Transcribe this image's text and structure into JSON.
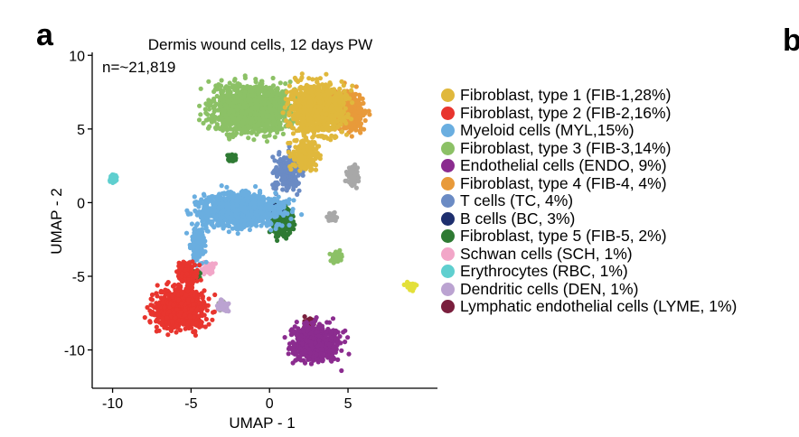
{
  "panels": {
    "a": "a",
    "b": "b"
  },
  "chart_data": {
    "type": "scatter",
    "title": "Dermis wound cells, 12 days PW",
    "annotation": "n=~21,819",
    "xlabel": "UMAP - 1",
    "ylabel": "UMAP - 2",
    "xlim": [
      -11.3,
      10.7
    ],
    "ylim": [
      -12.6,
      10.2
    ],
    "xticks": [
      -10,
      -5,
      0,
      5
    ],
    "xtick_labels": [
      "-10",
      "-5",
      "0",
      "5"
    ],
    "yticks": [
      10,
      5,
      0,
      -5,
      -10
    ],
    "ytick_labels": [
      "10",
      "5",
      "0",
      "-5",
      "-10"
    ],
    "grid": false,
    "legend_position": "right",
    "series": [
      {
        "name": "Fibroblast, type 1 (FIB-1,28%)",
        "color": "#E0B83C",
        "clusters": [
          {
            "center": [
              3.1,
              6.4
            ],
            "spread": [
              1.9,
              1.9
            ],
            "density": 0.95
          },
          {
            "center": [
              2.3,
              3.2
            ],
            "spread": [
              1.0,
              1.1
            ],
            "density": 0.6
          }
        ]
      },
      {
        "name": "Fibroblast, type 2 (FIB-2,16%)",
        "color": "#E8352E",
        "clusters": [
          {
            "center": [
              -5.7,
              -7.2
            ],
            "spread": [
              1.8,
              1.5
            ],
            "density": 1.0
          },
          {
            "center": [
              -5.2,
              -4.8
            ],
            "spread": [
              0.7,
              0.8
            ],
            "density": 0.8
          }
        ]
      },
      {
        "name": "Myeloid cells (MYL,15%)",
        "color": "#6AAEE0",
        "clusters": [
          {
            "center": [
              -1.8,
              -0.5
            ],
            "spread": [
              3.0,
              1.3
            ],
            "density": 0.95
          },
          {
            "center": [
              -4.6,
              -2.9
            ],
            "spread": [
              0.5,
              1.3
            ],
            "density": 0.7
          }
        ]
      },
      {
        "name": "Fibroblast, type 3 (FIB-3,14%)",
        "color": "#8CC166",
        "clusters": [
          {
            "center": [
              -1.2,
              6.4
            ],
            "spread": [
              2.7,
              1.8
            ],
            "density": 0.95
          },
          {
            "center": [
              4.3,
              -3.7
            ],
            "spread": [
              0.4,
              0.4
            ],
            "density": 0.8
          }
        ]
      },
      {
        "name": "Endothelial cells (ENDO, 9%)",
        "color": "#8B2C8F",
        "clusters": [
          {
            "center": [
              2.9,
              -9.5
            ],
            "spread": [
              1.6,
              1.4
            ],
            "density": 1.0
          }
        ]
      },
      {
        "name": "Fibroblast, type 4 (FIB-4, 4%)",
        "color": "#E89A3A",
        "clusters": [
          {
            "center": [
              5.1,
              6.2
            ],
            "spread": [
              1.0,
              1.5
            ],
            "density": 0.95
          }
        ]
      },
      {
        "name": "T cells (TC, 4%)",
        "color": "#6B8BC4",
        "clusters": [
          {
            "center": [
              1.2,
              2.1
            ],
            "spread": [
              1.0,
              1.3
            ],
            "density": 0.5
          }
        ]
      },
      {
        "name": "B cells (BC, 3%)",
        "color": "#1E2F6E",
        "clusters": [
          {
            "center": [
              0.3,
              -0.4
            ],
            "spread": [
              0.4,
              0.5
            ],
            "density": 0.3
          }
        ]
      },
      {
        "name": "Fibroblast, type 5 (FIB-5, 2%)",
        "color": "#2E7A33",
        "clusters": [
          {
            "center": [
              0.8,
              -1.2
            ],
            "spread": [
              0.7,
              1.3
            ],
            "density": 0.95
          },
          {
            "center": [
              -2.4,
              3.0
            ],
            "spread": [
              0.3,
              0.3
            ],
            "density": 0.9
          },
          {
            "center": [
              -4.7,
              -4.9
            ],
            "spread": [
              0.3,
              0.3
            ],
            "density": 0.9
          }
        ]
      },
      {
        "name": "Schwan cells (SCH, 1%)",
        "color": "#F2A6C8",
        "clusters": [
          {
            "center": [
              -4.0,
              -4.5
            ],
            "spread": [
              0.5,
              0.5
            ],
            "density": 0.4
          }
        ]
      },
      {
        "name": "Erythrocytes (RBC, 1%)",
        "color": "#5FCFCF",
        "clusters": [
          {
            "center": [
              -10.0,
              1.6
            ],
            "spread": [
              0.3,
              0.3
            ],
            "density": 0.9
          }
        ]
      },
      {
        "name": "Dendritic cells (DEN, 1%)",
        "color": "#BBA3D1",
        "clusters": [
          {
            "center": [
              -3.0,
              -7.0
            ],
            "spread": [
              0.4,
              0.4
            ],
            "density": 0.7
          }
        ]
      },
      {
        "name": "Lymphatic endothelial cells (LYME, 1%)",
        "color": "#7A1F3D",
        "clusters": [
          {
            "center": [
              2.5,
              -8.2
            ],
            "spread": [
              0.4,
              0.4
            ],
            "density": 0.4
          }
        ]
      }
    ],
    "unlisted_clusters": [
      {
        "color": "#E3E03A",
        "center": [
          9.0,
          -5.7
        ],
        "spread": [
          0.35,
          0.3
        ],
        "density": 1.0
      },
      {
        "color": "#A8A8A8",
        "center": [
          5.3,
          1.8
        ],
        "spread": [
          0.4,
          0.7
        ],
        "density": 0.9
      },
      {
        "color": "#A8A8A8",
        "center": [
          -3.0,
          -7.0
        ],
        "spread": [
          0.3,
          0.3
        ],
        "density": 0.9
      },
      {
        "color": "#A8A8A8",
        "center": [
          4.0,
          -1.0
        ],
        "spread": [
          0.3,
          0.3
        ],
        "density": 0.8
      }
    ]
  }
}
